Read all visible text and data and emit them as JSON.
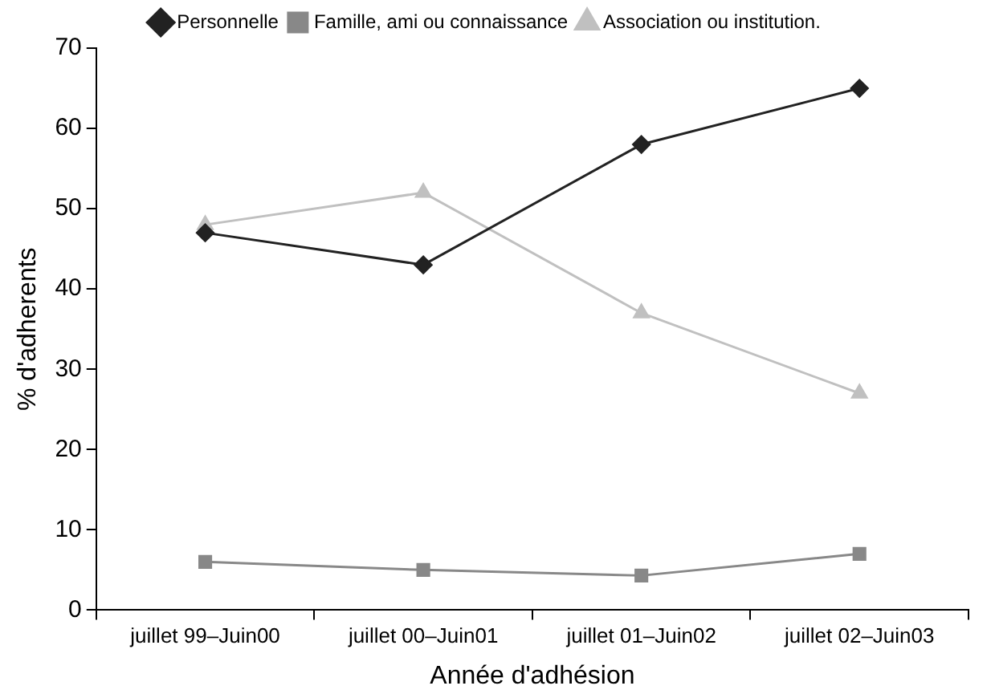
{
  "chart_data": {
    "type": "line",
    "xlabel": "Année d'adhésion",
    "ylabel": "% d'adherents",
    "categories": [
      "juillet 99–Juin00",
      "juillet 00–Juin01",
      "juillet 01–Juin02",
      "juillet 02–Juin03"
    ],
    "series": [
      {
        "name": "Personnelle",
        "color": "#222222",
        "marker": "diamond",
        "values": [
          47,
          43,
          58,
          65
        ]
      },
      {
        "name": "Famille, ami ou connaissance",
        "color": "#888888",
        "marker": "square",
        "values": [
          6,
          5,
          4.3,
          7
        ]
      },
      {
        "name": "Association ou institution.",
        "color": "#c0c0c0",
        "marker": "triangle",
        "values": [
          48,
          52,
          37,
          27
        ]
      }
    ],
    "ylim": [
      0,
      70
    ],
    "yticks": [
      0,
      10,
      20,
      30,
      40,
      50,
      60,
      70
    ],
    "grid": false,
    "legend": "top",
    "line_style": "solid"
  }
}
